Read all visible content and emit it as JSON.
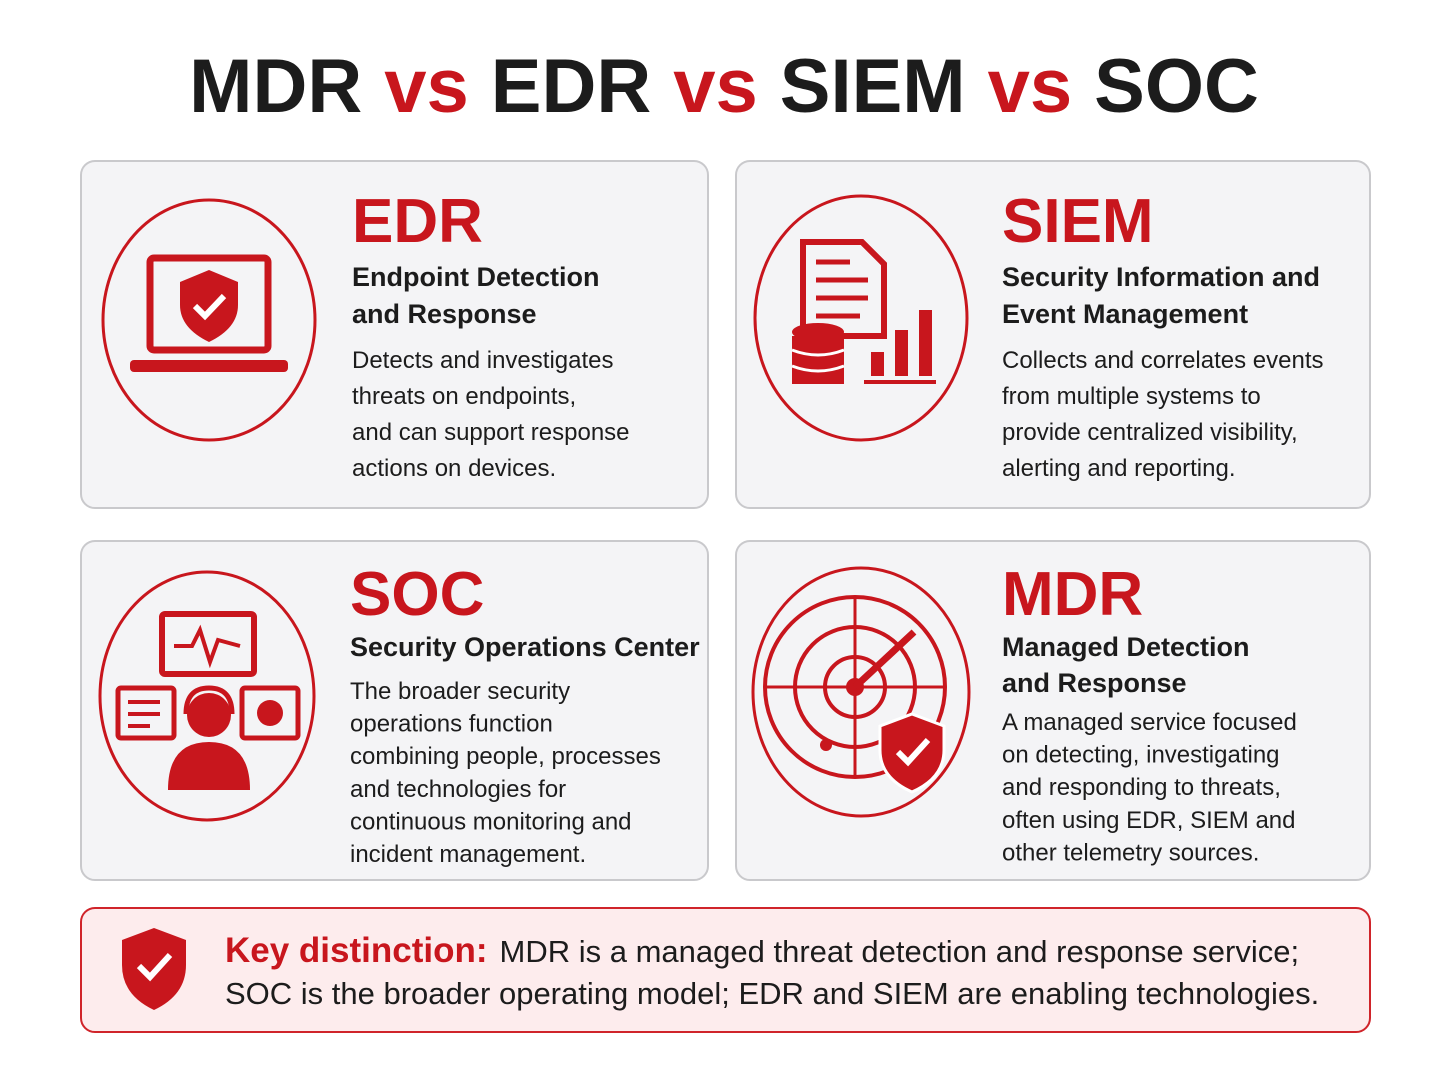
{
  "title": {
    "parts": [
      {
        "text": "MDR",
        "accent": false
      },
      {
        "text": "vs",
        "accent": true
      },
      {
        "text": "EDR",
        "accent": false
      },
      {
        "text": "vs",
        "accent": true
      },
      {
        "text": "SIEM",
        "accent": false
      },
      {
        "text": "vs",
        "accent": true
      },
      {
        "text": "SOC",
        "accent": false
      }
    ]
  },
  "cards": [
    {
      "acronym": "EDR",
      "name": [
        "Endpoint Detection",
        "and Response"
      ],
      "description": [
        "Detects and investigates",
        "threats on endpoints,",
        "and can support response",
        "actions on devices."
      ]
    },
    {
      "acronym": "SIEM",
      "name": [
        "Security Information and",
        "Event Management"
      ],
      "description": [
        "Collects and correlates events",
        "from multiple systems to",
        "provide centralized visibility,",
        "alerting and reporting."
      ]
    },
    {
      "acronym": "SOC",
      "name": [
        "Security Operations Center"
      ],
      "description": [
        "The broader security",
        "operations function",
        "combining people, processes",
        "and technologies for",
        "continuous monitoring and",
        "incident management."
      ]
    },
    {
      "acronym": "MDR",
      "name": [
        "Managed Detection",
        "and Response"
      ],
      "description": [
        "A managed service focused",
        "on detecting, investigating",
        "and responding to threats,",
        "often using EDR, SIEM and",
        "other telemetry sources."
      ]
    }
  ],
  "key": {
    "label": "Key distinction:",
    "lines": [
      "MDR is a managed threat detection and response service;",
      "SOC is the broader operating model; EDR and SIEM are enabling technologies."
    ]
  }
}
